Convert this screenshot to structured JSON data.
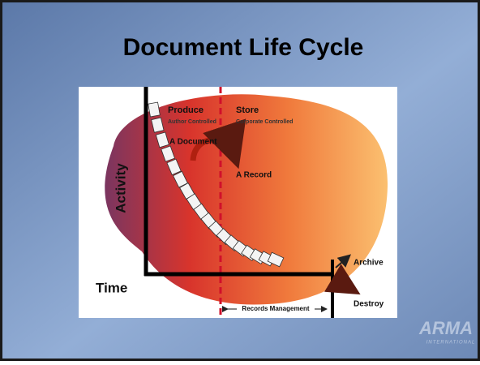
{
  "title": "Document Life Cycle",
  "diagram": {
    "phases": [
      {
        "label": "Produce",
        "sublabel": "Author Controlled"
      },
      {
        "label": "Store",
        "sublabel": "Corporate Controlled"
      }
    ],
    "transition": {
      "from": "A Document",
      "to": "A Record"
    },
    "y_axis_label": "Activity",
    "x_axis_label": "Time",
    "outcomes": [
      "Archive",
      "Destroy"
    ],
    "span_label": "Records Management"
  },
  "logo": {
    "name": "ARMA",
    "subtitle": "INTERNATIONAL"
  }
}
